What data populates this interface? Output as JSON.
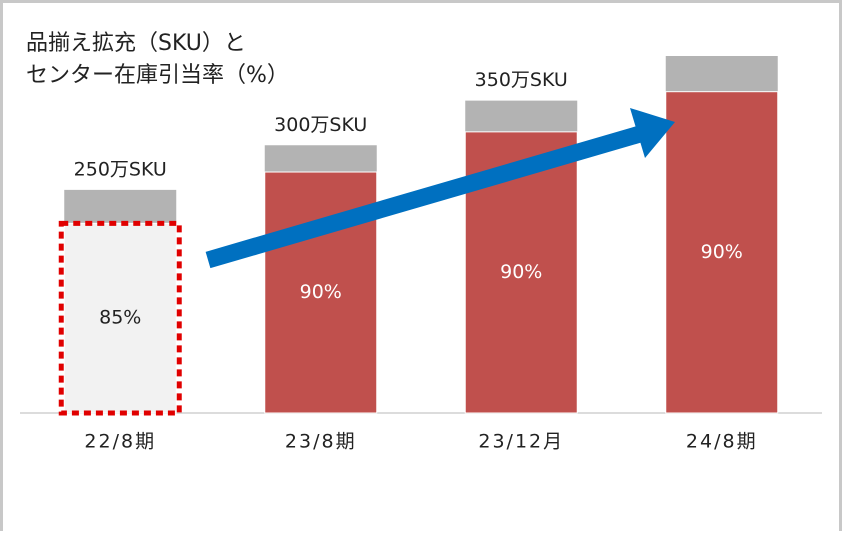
{
  "chart_data": {
    "type": "bar",
    "title": [
      "品揃え拡充（SKU）と",
      "センター在庫引当率（%）"
    ],
    "categories": [
      "22/8期",
      "23/8期",
      "23/12月",
      "24/8期"
    ],
    "series": [
      {
        "name": "SKU",
        "color": "#b3b3b3",
        "values": [
          250,
          300,
          350,
          400
        ],
        "value_labels": [
          "250万SKU",
          "300万SKU",
          "350万SKU",
          null
        ]
      },
      {
        "name": "センター在庫引当率",
        "color": "#c0504d",
        "values": [
          85,
          90,
          90,
          90
        ],
        "value_labels": [
          "85%",
          "90%",
          "90%",
          "90%"
        ],
        "colors": [
          "#f2f2f2",
          "#c0504d",
          "#c0504d",
          "#c0504d"
        ],
        "highlight_index": 0
      }
    ],
    "ylim": [
      0,
      400
    ]
  }
}
